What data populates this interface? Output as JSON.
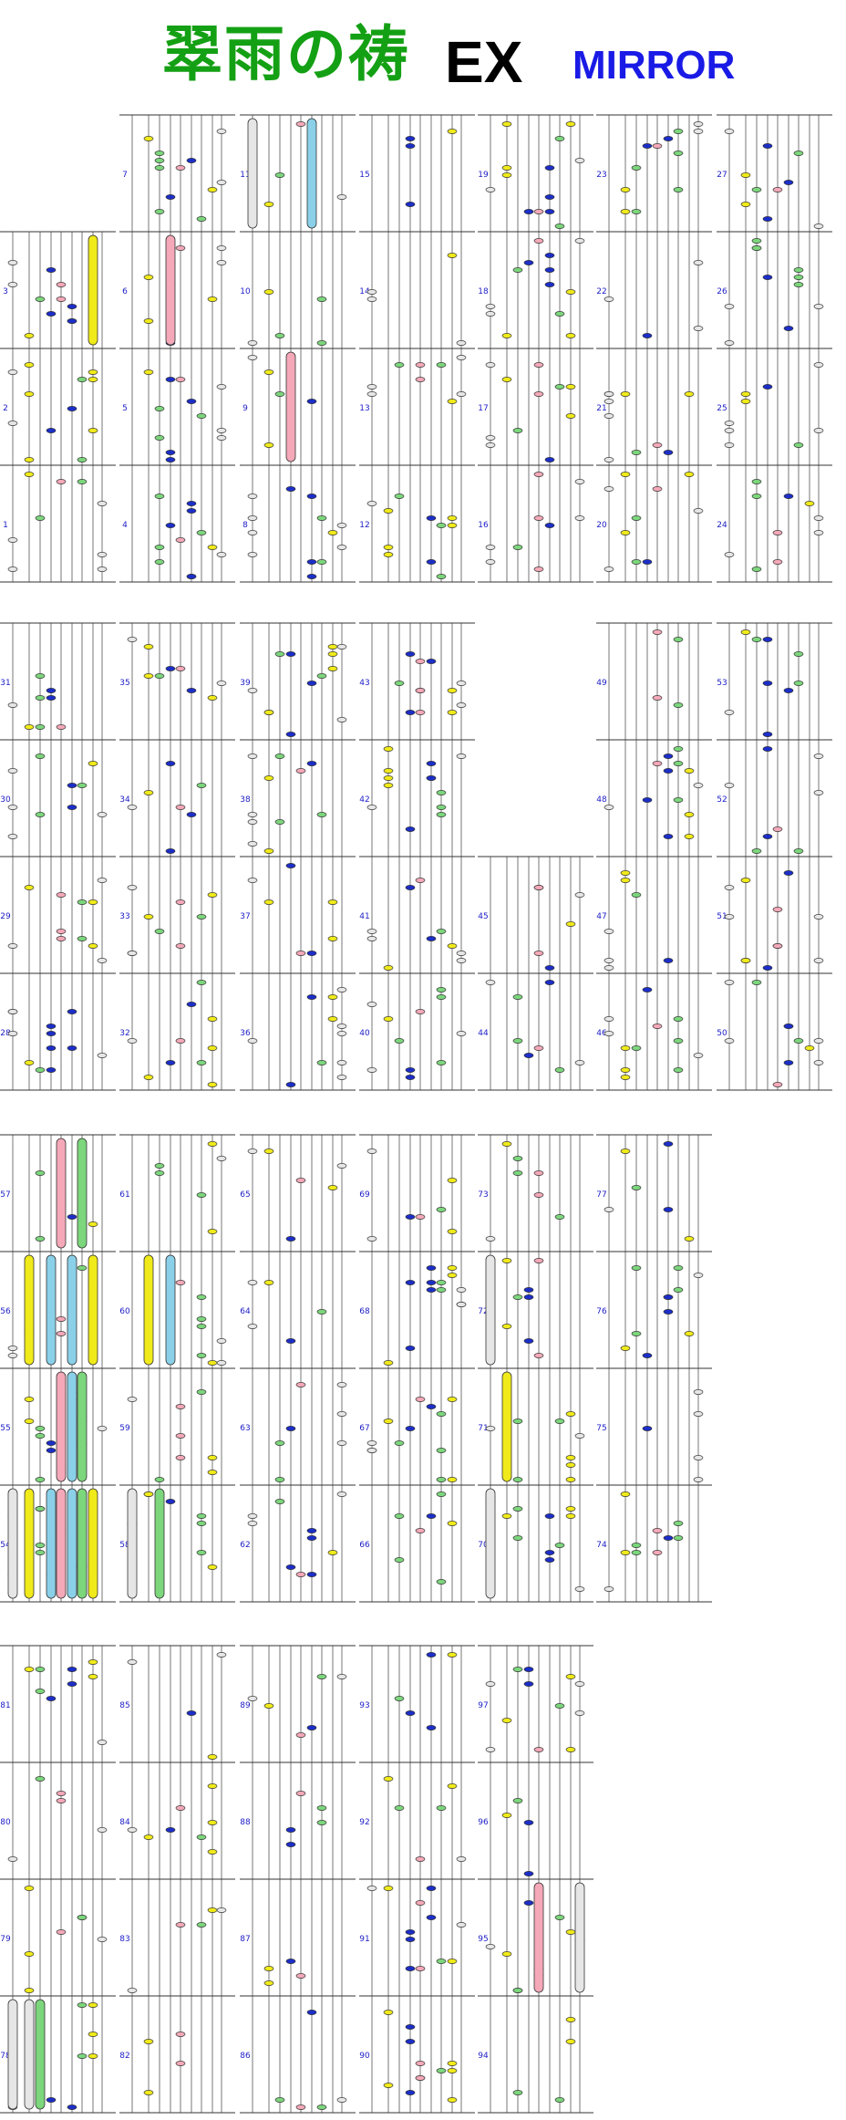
{
  "header": {
    "title_jp": "翠雨の祷",
    "title_ex": "EX",
    "title_mirror": "MIRROR"
  },
  "colors": {
    "title_jp": "#14a014",
    "title_ex": "#000000",
    "title_mirror": "#1a1ae6",
    "measure_number": "#2020c8",
    "lane_line": "#555555",
    "measure_line": "#333333",
    "note_white": "#e6e6e6",
    "note_blue": "#1c2ec8",
    "note_yellow": "#f0ea1a",
    "note_green": "#7cd67c",
    "note_pink": "#f4a8b8",
    "note_cyan": "#8ad0e8",
    "note_outline": "#333333"
  },
  "chart_data": {
    "type": "rhythm-game-score",
    "lanes": [
      "S",
      "1",
      "2",
      "3",
      "4",
      "5",
      "6",
      "7",
      "8"
    ],
    "measures": [
      "1",
      "2",
      "3",
      "4",
      "5",
      "6",
      "7",
      "8",
      "9",
      "10",
      "11",
      "12",
      "13",
      "14",
      "15",
      "16",
      "17",
      "18",
      "19",
      "20",
      "21",
      "22",
      "23",
      "24",
      "25",
      "26",
      "27",
      "28",
      "29",
      "30",
      "31",
      "32",
      "33",
      "34",
      "35",
      "36",
      "37",
      "38",
      "39",
      "40",
      "41",
      "42",
      "43",
      "44",
      "45",
      "46",
      "47",
      "48",
      "49",
      "50",
      "51",
      "52",
      "53",
      "54",
      "55",
      "56",
      "57",
      "58",
      "59",
      "60",
      "61",
      "62",
      "63",
      "64",
      "65",
      "66",
      "67",
      "68",
      "69",
      "70",
      "71",
      "72",
      "73",
      "74",
      "75",
      "76",
      "77",
      "78",
      "79",
      "80",
      "81",
      "82",
      "83",
      "84",
      "85",
      "86",
      "87",
      "88",
      "89",
      "90",
      "91",
      "92",
      "93",
      "94",
      "95",
      "96",
      "97"
    ],
    "note_types": [
      "white",
      "blue",
      "yellow",
      "green",
      "pink",
      "cyan"
    ],
    "long_notes": [
      {
        "measure": "3",
        "lane": "7",
        "color": "yellow"
      },
      {
        "measure": "6",
        "lane": "3",
        "color": "pink"
      },
      {
        "measure": "9",
        "lane": "3",
        "color": "pink"
      },
      {
        "measure": "11",
        "lane": "S",
        "color": "white"
      },
      {
        "measure": "11",
        "lane": "5",
        "color": "cyan"
      },
      {
        "measure": "54",
        "lane": "S",
        "color": "white"
      },
      {
        "measure": "54",
        "lane": "1",
        "color": "yellow"
      },
      {
        "measure": "54",
        "lane": "3",
        "color": "cyan"
      },
      {
        "measure": "54",
        "lane": "4",
        "color": "pink"
      },
      {
        "measure": "54",
        "lane": "5",
        "color": "cyan"
      },
      {
        "measure": "54",
        "lane": "6",
        "color": "green"
      },
      {
        "measure": "54",
        "lane": "7",
        "color": "yellow"
      },
      {
        "measure": "55",
        "lane": "4",
        "color": "pink"
      },
      {
        "measure": "55",
        "lane": "6",
        "color": "green"
      },
      {
        "measure": "55",
        "lane": "5",
        "color": "cyan"
      },
      {
        "measure": "56",
        "lane": "1",
        "color": "yellow"
      },
      {
        "measure": "56",
        "lane": "3",
        "color": "cyan"
      },
      {
        "measure": "56",
        "lane": "5",
        "color": "cyan"
      },
      {
        "measure": "56",
        "lane": "7",
        "color": "yellow"
      },
      {
        "measure": "57",
        "lane": "4",
        "color": "pink"
      },
      {
        "measure": "57",
        "lane": "6",
        "color": "green"
      },
      {
        "measure": "58",
        "lane": "S",
        "color": "white"
      },
      {
        "measure": "58",
        "lane": "2",
        "color": "green"
      },
      {
        "measure": "60",
        "lane": "1",
        "color": "yellow"
      },
      {
        "measure": "60",
        "lane": "3",
        "color": "cyan"
      },
      {
        "measure": "70",
        "lane": "S",
        "color": "white"
      },
      {
        "measure": "71",
        "lane": "1",
        "color": "yellow"
      },
      {
        "measure": "72",
        "lane": "S",
        "color": "white"
      },
      {
        "measure": "78",
        "lane": "S",
        "color": "white"
      },
      {
        "measure": "78",
        "lane": "1",
        "color": "white"
      },
      {
        "measure": "78",
        "lane": "2",
        "color": "green"
      },
      {
        "measure": "95",
        "lane": "4",
        "color": "pink"
      },
      {
        "measure": "95",
        "lane": "8",
        "color": "white"
      }
    ]
  }
}
